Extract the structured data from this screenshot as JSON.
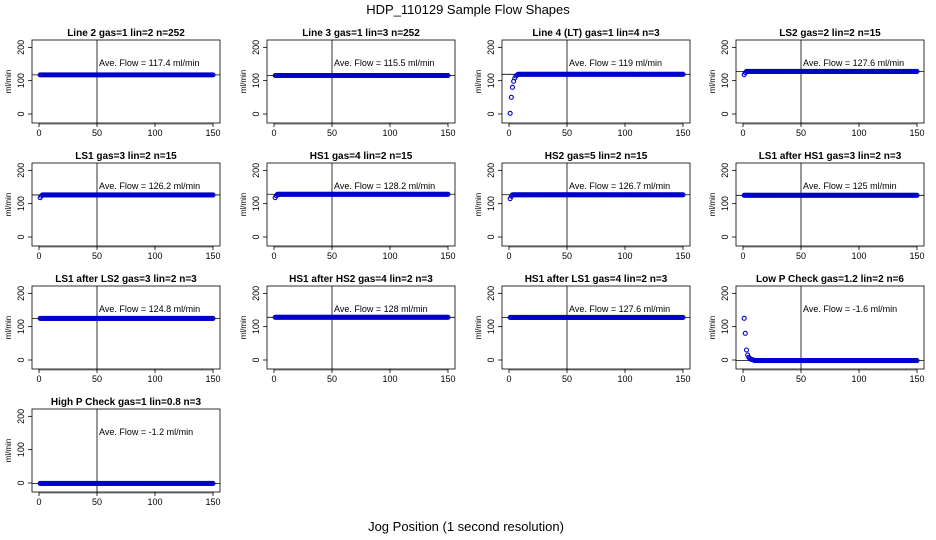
{
  "figure": {
    "title": "HDP_110129  Sample Flow Shapes",
    "xlabel": "Jog Position (1 second resolution)"
  },
  "colors": {
    "points": "#0000cc",
    "axis": "#000000",
    "background": "#ffffff"
  },
  "chart_data": [
    {
      "type": "scatter",
      "title": "Line 2 gas=1 lin=2 n=252",
      "ylabel": "ml/min",
      "annotation": "Ave. Flow =  117.4  ml/min",
      "xlim": [
        0,
        150
      ],
      "ylim": [
        0,
        200
      ],
      "xticks": [
        0,
        50,
        100,
        150
      ],
      "yticks": [
        0,
        100,
        200
      ],
      "vline": 50,
      "hline": 117.4,
      "points": {
        "x_start": 1,
        "x_end": 150,
        "y_const": 117.4,
        "head": []
      }
    },
    {
      "type": "scatter",
      "title": "Line 3 gas=1 lin=3 n=252",
      "ylabel": "ml/min",
      "annotation": "Ave. Flow =  115.5  ml/min",
      "xlim": [
        0,
        150
      ],
      "ylim": [
        0,
        200
      ],
      "xticks": [
        0,
        50,
        100,
        150
      ],
      "yticks": [
        0,
        100,
        200
      ],
      "vline": 50,
      "hline": 115.5,
      "points": {
        "x_start": 1,
        "x_end": 150,
        "y_const": 115.5,
        "head": []
      }
    },
    {
      "type": "scatter",
      "title": "Line 4 (LT) gas=1 lin=4 n=3",
      "ylabel": "ml/min",
      "annotation": "Ave. Flow =  119  ml/min",
      "xlim": [
        0,
        150
      ],
      "ylim": [
        0,
        200
      ],
      "xticks": [
        0,
        50,
        100,
        150
      ],
      "yticks": [
        0,
        100,
        200
      ],
      "vline": 50,
      "hline": 119,
      "points": {
        "x_start": 8,
        "x_end": 150,
        "y_const": 119,
        "head": [
          [
            1,
            2
          ],
          [
            2,
            50
          ],
          [
            3,
            80
          ],
          [
            4,
            98
          ],
          [
            5,
            108
          ],
          [
            6,
            114
          ],
          [
            7,
            117
          ]
        ]
      }
    },
    {
      "type": "scatter",
      "title": "LS2 gas=2 lin=2 n=15",
      "ylabel": "ml/min",
      "annotation": "Ave. Flow =  127.6  ml/min",
      "xlim": [
        0,
        150
      ],
      "ylim": [
        0,
        200
      ],
      "xticks": [
        0,
        50,
        100,
        150
      ],
      "yticks": [
        0,
        100,
        200
      ],
      "vline": 50,
      "hline": 127.6,
      "points": {
        "x_start": 3,
        "x_end": 150,
        "y_const": 127.6,
        "head": [
          [
            1,
            118
          ],
          [
            2,
            124
          ]
        ]
      }
    },
    {
      "type": "scatter",
      "title": "LS1 gas=3 lin=2 n=15",
      "ylabel": "ml/min",
      "annotation": "Ave. Flow =  126.2  ml/min",
      "xlim": [
        0,
        150
      ],
      "ylim": [
        0,
        200
      ],
      "xticks": [
        0,
        50,
        100,
        150
      ],
      "yticks": [
        0,
        100,
        200
      ],
      "vline": 50,
      "hline": 126.2,
      "points": {
        "x_start": 3,
        "x_end": 150,
        "y_const": 126.2,
        "head": [
          [
            1,
            118
          ],
          [
            2,
            123
          ]
        ]
      }
    },
    {
      "type": "scatter",
      "title": "HS1 gas=4 lin=2 n=15",
      "ylabel": "ml/min",
      "annotation": "Ave. Flow =  128.2  ml/min",
      "xlim": [
        0,
        150
      ],
      "ylim": [
        0,
        200
      ],
      "xticks": [
        0,
        50,
        100,
        150
      ],
      "yticks": [
        0,
        100,
        200
      ],
      "vline": 50,
      "hline": 128.2,
      "points": {
        "x_start": 3,
        "x_end": 150,
        "y_const": 128.2,
        "head": [
          [
            1,
            118
          ],
          [
            2,
            124
          ]
        ]
      }
    },
    {
      "type": "scatter",
      "title": "HS2 gas=5 lin=2 n=15",
      "ylabel": "ml/min",
      "annotation": "Ave. Flow =  126.7  ml/min",
      "xlim": [
        0,
        150
      ],
      "ylim": [
        0,
        200
      ],
      "xticks": [
        0,
        50,
        100,
        150
      ],
      "yticks": [
        0,
        100,
        200
      ],
      "vline": 50,
      "hline": 126.7,
      "points": {
        "x_start": 3,
        "x_end": 150,
        "y_const": 126.7,
        "head": [
          [
            1,
            115
          ],
          [
            2,
            122
          ]
        ]
      }
    },
    {
      "type": "scatter",
      "title": "LS1 after HS1 gas=3 lin=2 n=3",
      "ylabel": "ml/min",
      "annotation": "Ave. Flow =  125  ml/min",
      "xlim": [
        0,
        150
      ],
      "ylim": [
        0,
        200
      ],
      "xticks": [
        0,
        50,
        100,
        150
      ],
      "yticks": [
        0,
        100,
        200
      ],
      "vline": 50,
      "hline": 125,
      "points": {
        "x_start": 1,
        "x_end": 150,
        "y_const": 125,
        "head": []
      }
    },
    {
      "type": "scatter",
      "title": "LS1 after LS2 gas=3 lin=2 n=3",
      "ylabel": "ml/min",
      "annotation": "Ave. Flow =  124.8  ml/min",
      "xlim": [
        0,
        150
      ],
      "ylim": [
        0,
        200
      ],
      "xticks": [
        0,
        50,
        100,
        150
      ],
      "yticks": [
        0,
        100,
        200
      ],
      "vline": 50,
      "hline": 124.8,
      "points": {
        "x_start": 1,
        "x_end": 150,
        "y_const": 124.8,
        "head": []
      }
    },
    {
      "type": "scatter",
      "title": "HS1 after HS2 gas=4 lin=2 n=3",
      "ylabel": "ml/min",
      "annotation": "Ave. Flow =  128  ml/min",
      "xlim": [
        0,
        150
      ],
      "ylim": [
        0,
        200
      ],
      "xticks": [
        0,
        50,
        100,
        150
      ],
      "yticks": [
        0,
        100,
        200
      ],
      "vline": 50,
      "hline": 128,
      "points": {
        "x_start": 1,
        "x_end": 150,
        "y_const": 128,
        "head": []
      }
    },
    {
      "type": "scatter",
      "title": "HS1 after LS1 gas=4 lin=2 n=3",
      "ylabel": "ml/min",
      "annotation": "Ave. Flow =  127.6  ml/min",
      "xlim": [
        0,
        150
      ],
      "ylim": [
        0,
        200
      ],
      "xticks": [
        0,
        50,
        100,
        150
      ],
      "yticks": [
        0,
        100,
        200
      ],
      "vline": 50,
      "hline": 127.6,
      "points": {
        "x_start": 1,
        "x_end": 150,
        "y_const": 127.6,
        "head": []
      }
    },
    {
      "type": "scatter",
      "title": "Low P Check gas=1.2 lin=2 n=6",
      "ylabel": "ml/min",
      "annotation": "Ave. Flow =  -1.6  ml/min",
      "xlim": [
        0,
        150
      ],
      "ylim": [
        0,
        200
      ],
      "xticks": [
        0,
        50,
        100,
        150
      ],
      "yticks": [
        0,
        100,
        200
      ],
      "vline": 50,
      "hline": -1.6,
      "points": {
        "x_start": 10,
        "x_end": 150,
        "y_const": -1.6,
        "head": [
          [
            1,
            125
          ],
          [
            2,
            80
          ],
          [
            3,
            30
          ],
          [
            4,
            15
          ],
          [
            5,
            8
          ],
          [
            6,
            4
          ],
          [
            7,
            2
          ],
          [
            8,
            1
          ],
          [
            9,
            0
          ]
        ]
      }
    },
    {
      "type": "scatter",
      "title": "High P Check gas=1 lin=0.8 n=3",
      "ylabel": "ml/min",
      "annotation": "Ave. Flow =  -1.2  ml/min",
      "xlim": [
        0,
        150
      ],
      "ylim": [
        0,
        200
      ],
      "xticks": [
        0,
        50,
        100,
        150
      ],
      "yticks": [
        0,
        100,
        200
      ],
      "vline": 50,
      "hline": -1.2,
      "points": {
        "x_start": 1,
        "x_end": 150,
        "y_const": -1.2,
        "head": []
      }
    }
  ]
}
